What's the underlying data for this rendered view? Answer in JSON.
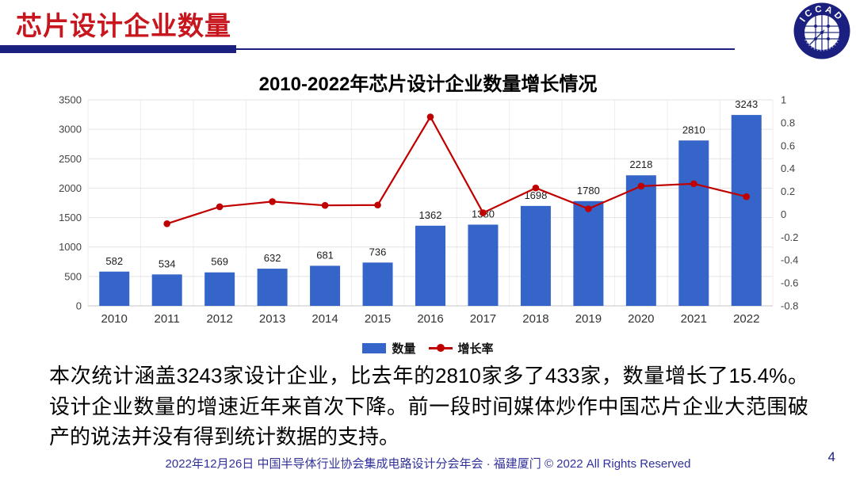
{
  "header": {
    "title": "芯片设计企业数量",
    "logo_text": "ICCAD"
  },
  "theme": {
    "title_red": "#C8161E",
    "navy": "#1B2080",
    "footer_blue": "#31319B"
  },
  "chart_data": {
    "type": "bar",
    "title": "2010-2022年芯片设计企业数量增长情况",
    "categories": [
      2010,
      2011,
      2012,
      2013,
      2014,
      2015,
      2016,
      2017,
      2018,
      2019,
      2020,
      2021,
      2022
    ],
    "series": [
      {
        "name": "数量",
        "type": "bar",
        "axis": "left",
        "values": [
          582,
          534,
          569,
          632,
          681,
          736,
          1362,
          1380,
          1698,
          1780,
          2218,
          2810,
          3243
        ]
      },
      {
        "name": "增长率",
        "type": "line",
        "axis": "right",
        "values": [
          null,
          -0.082,
          0.066,
          0.111,
          0.078,
          0.081,
          0.851,
          0.013,
          0.23,
          0.048,
          0.246,
          0.267,
          0.154
        ]
      }
    ],
    "left_axis": {
      "min": 0,
      "max": 3500,
      "step": 500
    },
    "right_axis": {
      "min": -0.8,
      "max": 1,
      "step": 0.2
    },
    "grid": true,
    "legend_position": "bottom",
    "colors": {
      "bar": "#3565C8",
      "line": "#C00000"
    }
  },
  "body": {
    "paragraph": "本次统计涵盖3243家设计企业，比去年的2810家多了433家，数量增长了15.4%。设计企业数量的增速近年来首次下降。前一段时间媒体炒作中国芯片企业大范围破产的说法并没有得到统计数据的支持。"
  },
  "footer": {
    "text": "2022年12月26日 中国半导体行业协会集成电路设计分会年会 · 福建厦门 © 2022 All Rights Reserved",
    "page_number": "4"
  }
}
